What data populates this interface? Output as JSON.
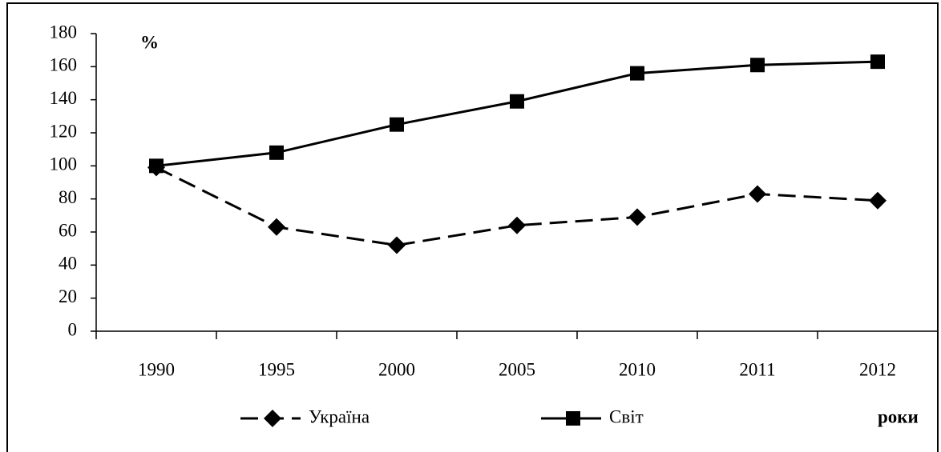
{
  "chart_data": {
    "type": "line",
    "y_label": "%",
    "x_label": "роки",
    "categories": [
      "1990",
      "1995",
      "2000",
      "2005",
      "2010",
      "2011",
      "2012"
    ],
    "series": [
      {
        "name": "Україна",
        "color": "#000000",
        "line_style": "dashed",
        "marker": "diamond",
        "values": [
          99,
          63,
          52,
          64,
          69,
          83,
          79
        ]
      },
      {
        "name": "Світ",
        "color": "#000000",
        "line_style": "solid",
        "marker": "square",
        "values": [
          100,
          108,
          125,
          139,
          156,
          161,
          163
        ]
      }
    ],
    "ylim": [
      0,
      180
    ],
    "yticks": [
      0,
      20,
      40,
      60,
      80,
      100,
      120,
      140,
      160,
      180
    ],
    "legend": "bottom"
  }
}
